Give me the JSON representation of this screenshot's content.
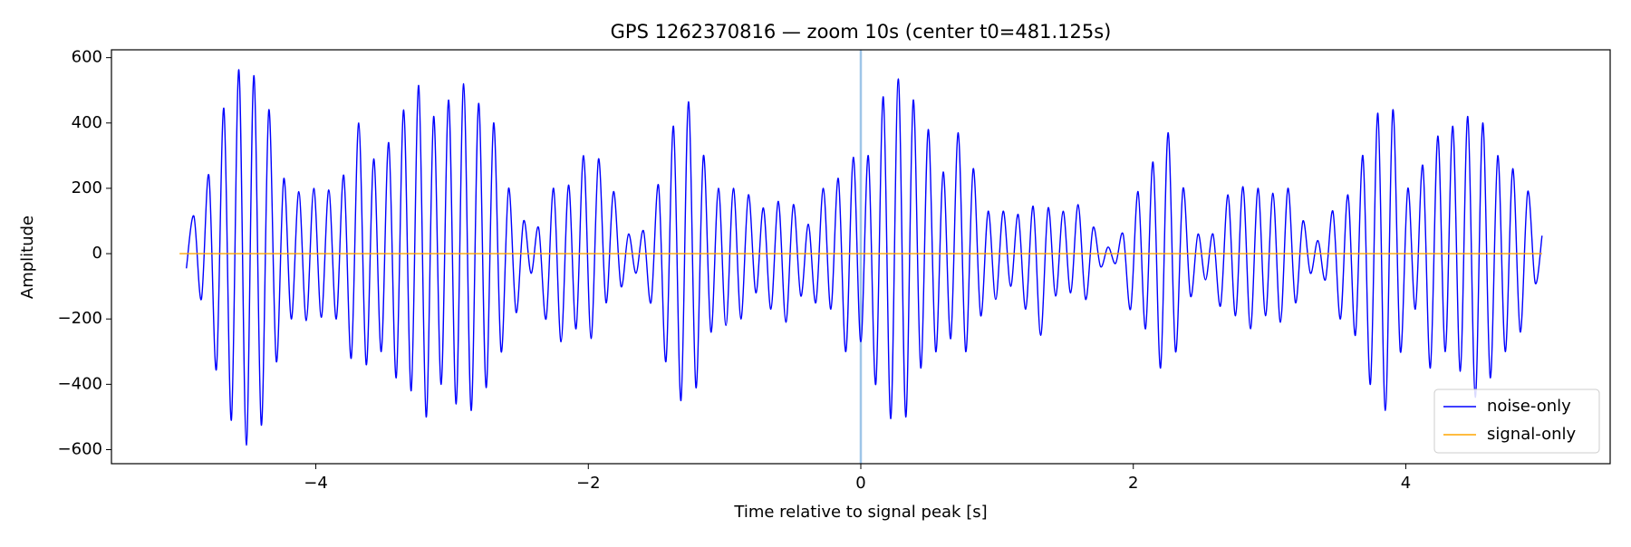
{
  "chart_data": {
    "type": "line",
    "title": "GPS 1262370816 — zoom 10s (center t0=481.125s)",
    "x_label": "Time relative to signal peak [s]",
    "y_label": "Amplitude",
    "xlim": [
      -5.5,
      5.5
    ],
    "ylim": [
      -643,
      624
    ],
    "xticks": [
      {
        "value": -4,
        "label": "−4"
      },
      {
        "value": -2,
        "label": "−2"
      },
      0,
      2,
      4
    ],
    "yticks": [
      {
        "value": -600,
        "label": "−600"
      },
      {
        "value": -400,
        "label": "−400"
      },
      {
        "value": -200,
        "label": "−200"
      },
      0,
      200,
      400,
      600
    ],
    "grid": false,
    "legend": "lower right",
    "vline": 0,
    "vline_color": "#9ec5e8",
    "series": [
      {
        "name": "noise-only",
        "color": "#0000ff",
        "x": [
          -4.95,
          -4.895,
          -4.84,
          -4.785,
          -4.73,
          -4.675,
          -4.62,
          -4.565,
          -4.51,
          -4.455,
          -4.4,
          -4.345,
          -4.29,
          -4.235,
          -4.18,
          -4.125,
          -4.07,
          -4.015,
          -3.96,
          -3.905,
          -3.85,
          -3.795,
          -3.74,
          -3.685,
          -3.63,
          -3.575,
          -3.52,
          -3.465,
          -3.41,
          -3.355,
          -3.3,
          -3.245,
          -3.19,
          -3.135,
          -3.08,
          -3.025,
          -2.97,
          -2.915,
          -2.86,
          -2.805,
          -2.75,
          -2.695,
          -2.64,
          -2.585,
          -2.53,
          -2.475,
          -2.42,
          -2.365,
          -2.31,
          -2.255,
          -2.2,
          -2.145,
          -2.09,
          -2.035,
          -1.98,
          -1.925,
          -1.87,
          -1.815,
          -1.76,
          -1.705,
          -1.65,
          -1.595,
          -1.54,
          -1.485,
          -1.43,
          -1.375,
          -1.32,
          -1.265,
          -1.21,
          -1.155,
          -1.1,
          -1.045,
          -0.99,
          -0.935,
          -0.88,
          -0.825,
          -0.77,
          -0.715,
          -0.66,
          -0.605,
          -0.55,
          -0.495,
          -0.44,
          -0.385,
          -0.33,
          -0.275,
          -0.22,
          -0.165,
          -0.11,
          -0.055,
          0,
          0.055,
          0.11,
          0.165,
          0.22,
          0.275,
          0.33,
          0.385,
          0.44,
          0.495,
          0.55,
          0.605,
          0.66,
          0.715,
          0.77,
          0.825,
          0.88,
          0.935,
          0.99,
          1.045,
          1.1,
          1.155,
          1.21,
          1.265,
          1.32,
          1.375,
          1.43,
          1.485,
          1.54,
          1.595,
          1.65,
          1.705,
          1.76,
          1.815,
          1.87,
          1.925,
          1.98,
          2.035,
          2.09,
          2.145,
          2.2,
          2.255,
          2.31,
          2.365,
          2.42,
          2.475,
          2.53,
          2.585,
          2.64,
          2.695,
          2.75,
          2.805,
          2.86,
          2.915,
          2.97,
          3.025,
          3.08,
          3.135,
          3.19,
          3.245,
          3.3,
          3.355,
          3.41,
          3.465,
          3.52,
          3.575,
          3.63,
          3.685,
          3.74,
          3.795,
          3.85,
          3.905,
          3.96,
          4.015,
          4.07,
          4.125,
          4.18,
          4.235,
          4.29,
          4.345,
          4.4,
          4.455,
          4.51,
          4.565,
          4.62,
          4.675,
          4.73,
          4.785,
          4.84,
          4.895,
          4.95,
          5.0
        ],
        "values": [
          -45,
          115,
          -140,
          240,
          -355,
          445,
          -510,
          563,
          -586,
          545,
          -525,
          440,
          -330,
          230,
          -200,
          190,
          -205,
          200,
          -195,
          195,
          -200,
          240,
          -320,
          400,
          -340,
          290,
          -300,
          340,
          -380,
          440,
          -420,
          515,
          -500,
          420,
          -400,
          470,
          -460,
          520,
          -480,
          460,
          -410,
          400,
          -300,
          200,
          -180,
          100,
          -60,
          80,
          -200,
          200,
          -270,
          210,
          -230,
          300,
          -260,
          290,
          -150,
          190,
          -100,
          60,
          -60,
          70,
          -150,
          210,
          -330,
          390,
          -450,
          465,
          -410,
          300,
          -240,
          200,
          -220,
          200,
          -200,
          180,
          -120,
          140,
          -170,
          160,
          -210,
          150,
          -130,
          90,
          -150,
          200,
          -170,
          230,
          -300,
          295,
          -270,
          300,
          -400,
          480,
          -505,
          535,
          -500,
          470,
          -350,
          380,
          -300,
          250,
          -260,
          370,
          -300,
          260,
          -190,
          130,
          -140,
          130,
          -100,
          120,
          -170,
          145,
          -250,
          140,
          -130,
          130,
          -120,
          150,
          -140,
          80,
          -40,
          20,
          -30,
          60,
          -170,
          190,
          -230,
          280,
          -350,
          370,
          -300,
          200,
          -130,
          60,
          -80,
          60,
          -160,
          180,
          -190,
          205,
          -230,
          200,
          -190,
          185,
          -210,
          200,
          -150,
          100,
          -60,
          40,
          -80,
          130,
          -200,
          180,
          -250,
          300,
          -400,
          430,
          -480,
          440,
          -300,
          200,
          -170,
          270,
          -350,
          360,
          -300,
          390,
          -360,
          420,
          -440,
          400,
          -380,
          300,
          -300,
          260,
          -240,
          190,
          -90,
          55
        ]
      },
      {
        "name": "signal-only",
        "color": "#ffa500",
        "x": [
          -5,
          5
        ],
        "values": [
          0,
          0
        ]
      }
    ]
  }
}
